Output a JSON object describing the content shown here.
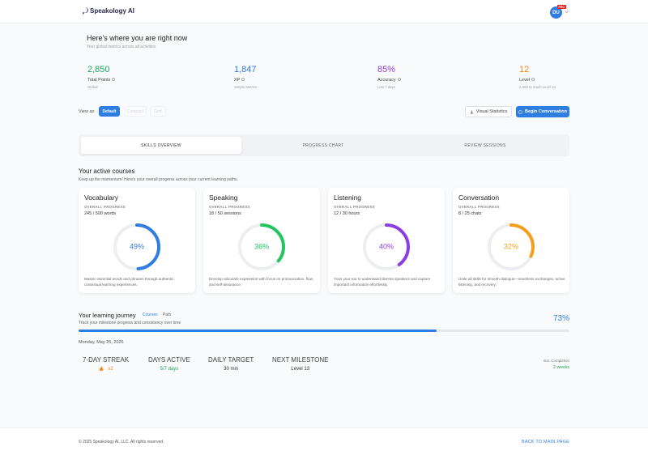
{
  "header": {
    "brand": "Speakology AI",
    "avatar": "DU",
    "badge": "PRO"
  },
  "overview": {
    "title": "Here's where you are right now",
    "subtitle": "Your global metrics across all activities",
    "metrics": [
      {
        "value": "2,850",
        "label": "Total Points",
        "note": "Global",
        "color": "#22a55b"
      },
      {
        "value": "1,847",
        "label": "XP",
        "note": "Simple Metrics",
        "color": "#2f7de1"
      },
      {
        "value": "85%",
        "label": "Accuracy",
        "note": "Last 7 days",
        "color": "#8b3fe0"
      },
      {
        "value": "12",
        "label": "Level",
        "note": "2,600 to reach Level 13",
        "color": "#f28a1d"
      }
    ]
  },
  "toolbar": {
    "view_as": "View as:",
    "views": [
      "Default",
      "Compact",
      "Grid"
    ],
    "visual_statistics": "Visual Statistics",
    "begin_conversation": "Begin Conversation"
  },
  "tabs": [
    "SKILLS OVERVIEW",
    "PROGRESS CHART",
    "REVIEW SESSIONS"
  ],
  "courses_section": {
    "title": "Your active courses",
    "subtitle": "Keep up the momentum! Here's your overall progress across your current learning paths."
  },
  "courses": [
    {
      "title": "Vocabulary",
      "progress_label": "OVERALL PROGRESS",
      "amount": "245 / 500 words",
      "percent": 49,
      "percent_label": "49%",
      "color": "#2f7de1",
      "description": "Master essential words and phrases through authentic, contextual learning experiences."
    },
    {
      "title": "Speaking",
      "progress_label": "OVERALL PROGRESS",
      "amount": "18 / 50 sessions",
      "percent": 36,
      "percent_label": "36%",
      "color": "#22c55e",
      "description": "Develop articulate expression with focus on pronunciation, flow, and self-assurance."
    },
    {
      "title": "Listening",
      "progress_label": "OVERALL PROGRESS",
      "amount": "12 / 30 hours",
      "percent": 40,
      "percent_label": "40%",
      "color": "#8b3fe0",
      "description": "Train your ear to understand diverse speakers and capture important information effortlessly."
    },
    {
      "title": "Conversation",
      "progress_label": "OVERALL PROGRESS",
      "amount": "8 / 25 chats",
      "percent": 32,
      "percent_label": "32%",
      "color": "#f59e1b",
      "description": "Unite all skills for smooth dialogue—seamless exchanges, active listening, and recovery."
    }
  ],
  "journey": {
    "title": "Your learning journey",
    "tabs": [
      "Courses",
      "Path"
    ],
    "subtitle": "Track your milestone progress and consistency over time",
    "progress": 73,
    "progress_label": "73%",
    "date": "Monday, May 25, 2026",
    "stats": [
      {
        "label": "7-DAY STREAK",
        "value": "x2",
        "color": "#f28a1d"
      },
      {
        "label": "DAYS ACTIVE",
        "value": "5/7 days",
        "color": "#22a55b"
      },
      {
        "label": "DAILY TARGET",
        "value": "30 min",
        "color": "#333"
      },
      {
        "label": "NEXT MILESTONE",
        "value": "Level 13",
        "color": "#333"
      }
    ],
    "completion_label": "Est. Completion",
    "completion_value": "2 weeks"
  },
  "footer": {
    "copyright": "© 2025 Speakology AI, LLC. All rights reserved.",
    "back_link": "BACK TO MAIN PAGE"
  }
}
